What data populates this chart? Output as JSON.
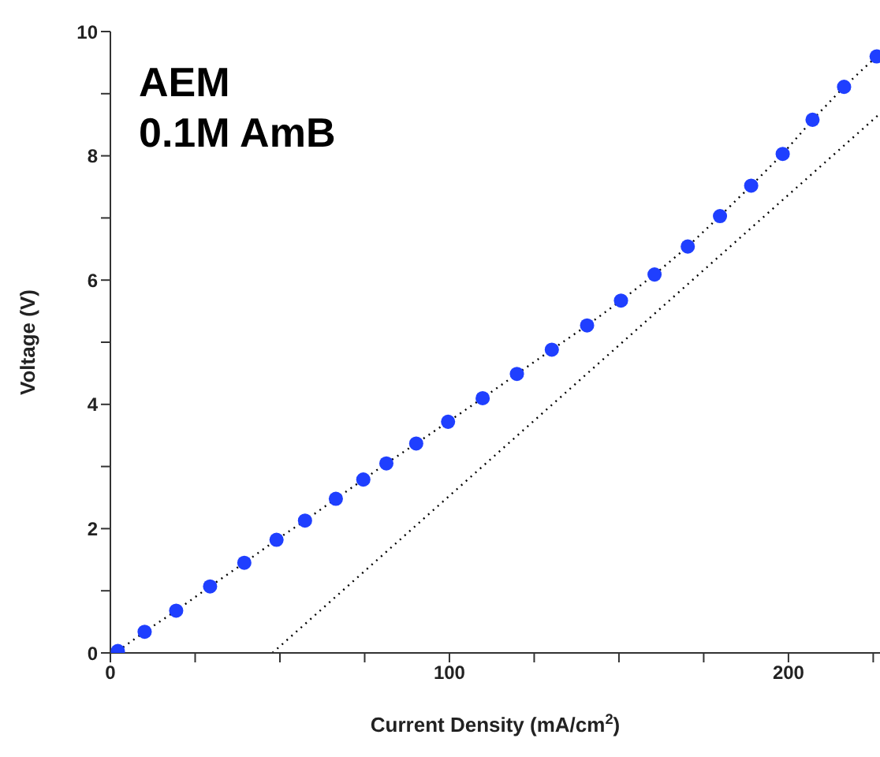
{
  "chart_data": {
    "type": "scatter",
    "title": "AEM",
    "subtitle": "0.1M AmB",
    "xlabel": "Current Density (mA/cm$^{2}$)",
    "ylabel": "Voltage (V)",
    "xlim": [
      0,
      227
    ],
    "xticks": [
      0,
      {
        "value": 25,
        "label": null
      },
      {
        "value": 50,
        "label": null
      },
      {
        "value": 75,
        "label": null
      },
      100,
      {
        "value": 125,
        "label": null
      },
      {
        "value": 150,
        "label": null
      },
      {
        "value": 175,
        "label": null
      },
      200,
      {
        "value": 225,
        "label": null
      }
    ],
    "ylim": [
      0,
      10
    ],
    "yticks": [
      0,
      {
        "value": 1,
        "label": null
      },
      2,
      {
        "value": 3,
        "label": null
      },
      4,
      {
        "value": 5,
        "label": null
      },
      6,
      {
        "value": 7,
        "label": null
      },
      8,
      {
        "value": 9,
        "label": null
      },
      10
    ],
    "grid": false,
    "marker": "circle",
    "series": [
      {
        "type": "line",
        "color": "#000000",
        "line_style": "dotted",
        "marker": "none",
        "x": [
          2.2,
          10.1,
          19.4,
          29.4,
          39.5,
          49.0,
          57.4,
          66.5,
          74.6,
          81.4,
          90.2,
          99.6,
          109.8,
          119.9,
          130.2,
          140.6,
          150.6,
          160.5,
          170.3,
          179.8,
          189.0,
          198.3,
          207.1,
          216.4,
          226.0
        ],
        "values": [
          0.03,
          0.34,
          0.68,
          1.07,
          1.45,
          1.82,
          2.13,
          2.48,
          2.79,
          3.05,
          3.37,
          3.72,
          4.1,
          4.49,
          4.88,
          5.27,
          5.67,
          6.09,
          6.54,
          7.03,
          7.52,
          8.03,
          8.58,
          9.11,
          9.6
        ]
      },
      {
        "type": "line",
        "color": "#000000",
        "line_style": "dotted",
        "marker": "none",
        "x": [
          47.8,
          227
        ],
        "values": [
          0,
          8.68
        ]
      },
      {
        "color": "#1f3fff",
        "x": [
          2.2,
          10.1,
          19.4,
          29.4,
          39.5,
          49.0,
          57.4,
          66.5,
          74.6,
          81.4,
          90.2,
          99.6,
          109.8,
          119.9,
          130.2,
          140.6,
          150.6,
          160.5,
          170.3,
          179.8,
          189.0,
          198.3,
          207.1,
          216.4,
          226.0
        ],
        "values": [
          0.03,
          0.34,
          0.68,
          1.07,
          1.45,
          1.82,
          2.13,
          2.48,
          2.79,
          3.05,
          3.37,
          3.72,
          4.1,
          4.49,
          4.88,
          5.27,
          5.67,
          6.09,
          6.54,
          7.03,
          7.52,
          8.03,
          8.58,
          9.11,
          9.6
        ]
      }
    ]
  }
}
